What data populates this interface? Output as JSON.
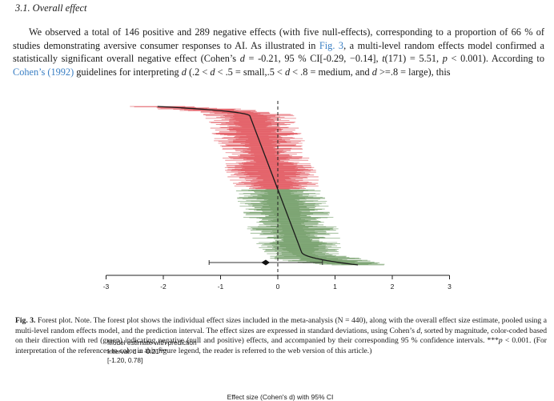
{
  "section": {
    "heading": "3.1. Overall effect"
  },
  "paragraph": {
    "text_a": "We observed a total of 146 positive and 289 negative effects (with five null-effects), corresponding to a proportion of 66 % of studies demonstrating aversive consumer responses to AI. As illustrated in ",
    "fig_ref": "Fig. 3",
    "text_b": ", a multi-level random effects model confirmed a statistically significant overall negative effect (Cohen’s ",
    "d_symbol": "d",
    "text_c": " = -0.21, 95 % CI[-0.29, −0.14], ",
    "t_symbol": "t",
    "text_d": "(171) = 5.51, ",
    "p_symbol": "p",
    "text_e": " < 0.001). According to ",
    "cite": "Cohen’s (1992)",
    "text_f": " guidelines for interpreting ",
    "d2_symbol": "d",
    "text_g": " (.2 < ",
    "d3_symbol": "d",
    "text_h": " < .5 = small,.5 < ",
    "d4_symbol": "d",
    "text_i": " < .8 = medium, and ",
    "d5_symbol": "d",
    "text_j": " >=.8 = large), this"
  },
  "figure": {
    "model_estimate": {
      "line1": "Model estimate with prediction",
      "line2": "Interval: d = -0.21***",
      "line3": "[-1.20, 0.78]"
    },
    "axis_title": "Effect size (Cohen's d) with 95% CI"
  },
  "chart_data": {
    "type": "forest",
    "n_effects": 440,
    "xlim": [
      -3,
      3
    ],
    "x_ticks": [
      "-3",
      "-2",
      "-1",
      "0",
      "1",
      "2",
      "3"
    ],
    "xlabel": "Effect size (Cohen's d) with 95% CI",
    "reference_line": 0,
    "sort": "by magnitude",
    "colors": {
      "negative": "#e0525a",
      "null_positive": "#6e9a63",
      "point": "#1e1e1e"
    },
    "approx_range": {
      "min_effect": -2.1,
      "max_effect": 1.4
    },
    "summary": {
      "estimate": -0.21,
      "ci": [
        -0.29,
        -0.14
      ],
      "prediction_interval": [
        -1.2,
        0.78
      ]
    }
  },
  "caption": {
    "label": "Fig. 3.",
    "text_a": " Forest plot. Note. The forest plot shows the individual effect sizes included in the meta-analysis (N = 440), along with the overall effect size estimate, pooled using a multi-level random effects model, and the prediction interval. The effect sizes are expressed in standard deviations, using Cohen’s ",
    "d_symbol": "d",
    "text_b": ", sorted by magnitude, color-coded based on their direction with red (green) indicating negative (null and positive) effects, and accompanied by their corresponding 95 % confidence intervals. ***",
    "p_symbol": "p",
    "text_c": " < 0.001. (For interpretation of the references to color in this figure legend, the reader is referred to the web version of this article.)"
  }
}
